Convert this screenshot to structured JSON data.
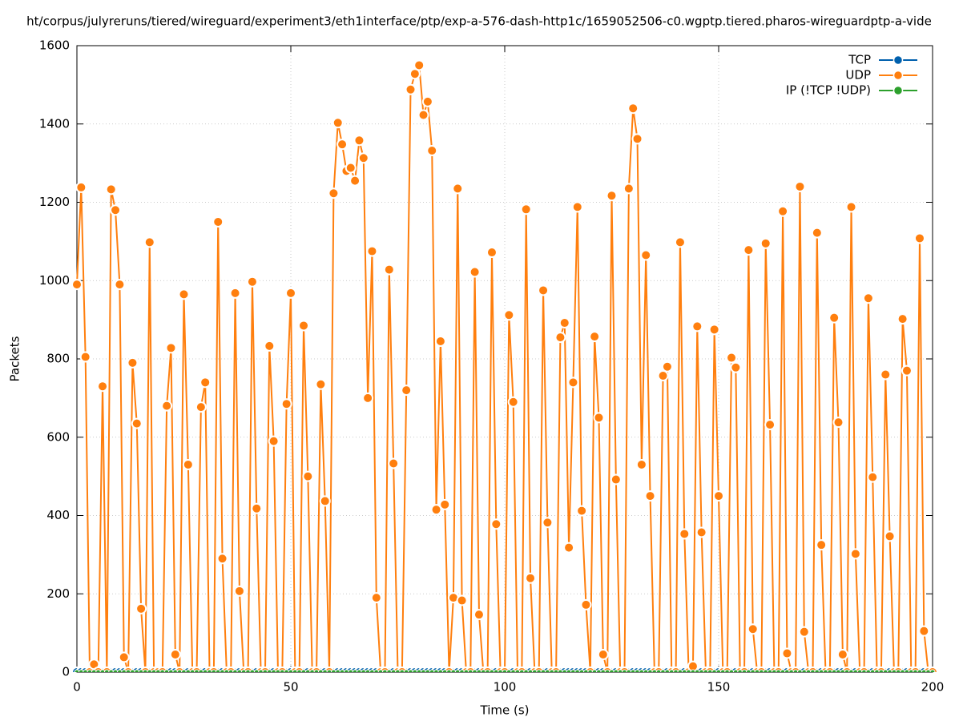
{
  "chart_data": {
    "type": "line",
    "title": "ht/corpus/julyreruns/tiered/wireguard/experiment3/eth1interface/ptp/exp-a-576-dash-http1c/1659052506-c0.wgptp.tiered.pharos-wireguardptp-a-vide",
    "x_label": "Time (s)",
    "y_label": "Packets",
    "xlim": [
      0,
      200
    ],
    "xticks": [
      0,
      50,
      100,
      150,
      200
    ],
    "ylim": [
      0,
      1600
    ],
    "yticks": [
      0,
      200,
      400,
      600,
      800,
      1000,
      1200,
      1400,
      1600
    ],
    "grid": true,
    "legend": "top-right",
    "x": [
      0,
      1,
      2,
      3,
      4,
      5,
      6,
      7,
      8,
      9,
      10,
      11,
      12,
      13,
      14,
      15,
      16,
      17,
      18,
      19,
      20,
      21,
      22,
      23,
      24,
      25,
      26,
      27,
      28,
      29,
      30,
      31,
      32,
      33,
      34,
      35,
      36,
      37,
      38,
      39,
      40,
      41,
      42,
      43,
      44,
      45,
      46,
      47,
      48,
      49,
      50,
      51,
      52,
      53,
      54,
      55,
      56,
      57,
      58,
      59,
      60,
      61,
      62,
      63,
      64,
      65,
      66,
      67,
      68,
      69,
      70,
      71,
      72,
      73,
      74,
      75,
      76,
      77,
      78,
      79,
      80,
      81,
      82,
      83,
      84,
      85,
      86,
      87,
      88,
      89,
      90,
      91,
      92,
      93,
      94,
      95,
      96,
      97,
      98,
      99,
      100,
      101,
      102,
      103,
      104,
      105,
      106,
      107,
      108,
      109,
      110,
      111,
      112,
      113,
      114,
      115,
      116,
      117,
      118,
      119,
      120,
      121,
      122,
      123,
      124,
      125,
      126,
      127,
      128,
      129,
      130,
      131,
      132,
      133,
      134,
      135,
      136,
      137,
      138,
      139,
      140,
      141,
      142,
      143,
      144,
      145,
      146,
      147,
      148,
      149,
      150,
      151,
      152,
      153,
      154,
      155,
      156,
      157,
      158,
      159,
      160,
      161,
      162,
      163,
      164,
      165,
      166,
      167,
      168,
      169,
      170,
      171,
      172,
      173,
      174,
      175,
      176,
      177,
      178,
      179,
      180,
      181,
      182,
      183,
      184,
      185,
      186,
      187,
      188,
      189,
      190,
      191,
      192,
      193,
      194,
      195,
      196,
      197,
      198,
      199,
      200
    ],
    "series": [
      {
        "name": "TCP",
        "color": "#0060ad",
        "values": [
          0,
          0,
          0,
          0,
          0,
          0,
          0,
          0,
          0,
          0,
          0,
          0,
          0,
          0,
          0,
          0,
          0,
          0,
          0,
          0,
          0,
          0,
          0,
          0,
          0,
          0,
          0,
          0,
          0,
          0,
          0,
          0,
          0,
          0,
          0,
          0,
          0,
          0,
          0,
          0,
          0,
          0,
          0,
          0,
          0,
          0,
          0,
          0,
          0,
          0,
          0,
          0,
          0,
          0,
          0,
          0,
          0,
          0,
          0,
          0,
          0,
          0,
          0,
          0,
          0,
          0,
          0,
          0,
          0,
          0,
          0,
          0,
          0,
          0,
          0,
          0,
          0,
          0,
          0,
          0,
          0,
          0,
          0,
          0,
          0,
          0,
          0,
          0,
          0,
          0,
          0,
          0,
          0,
          0,
          0,
          0,
          0,
          0,
          0,
          0,
          0,
          0,
          0,
          0,
          0,
          0,
          0,
          0,
          0,
          0,
          0,
          0,
          0,
          0,
          0,
          0,
          0,
          0,
          0,
          0,
          0,
          0,
          0,
          0,
          0,
          0,
          0,
          0,
          0,
          0,
          0,
          0,
          0,
          0,
          0,
          0,
          0,
          0,
          0,
          0,
          0,
          0,
          0,
          0,
          0,
          0,
          0,
          0,
          0,
          0,
          0,
          0,
          0,
          0,
          0,
          0,
          0,
          0,
          0,
          0,
          0,
          0,
          0,
          0,
          0,
          0,
          0,
          0,
          0,
          0,
          0,
          0,
          0,
          0,
          0,
          0,
          0,
          0,
          0,
          0,
          0,
          0,
          0,
          0,
          0,
          0,
          0,
          0,
          0,
          0,
          0,
          0,
          0,
          0,
          0,
          0,
          0,
          0,
          0,
          0,
          0
        ]
      },
      {
        "name": "UDP",
        "color": "#ff7f0e",
        "values": [
          990,
          1238,
          805,
          0,
          20,
          0,
          730,
          0,
          1233,
          1180,
          990,
          38,
          0,
          790,
          635,
          162,
          0,
          1098,
          0,
          0,
          0,
          680,
          828,
          45,
          0,
          965,
          530,
          0,
          0,
          677,
          740,
          0,
          0,
          1150,
          290,
          0,
          0,
          968,
          207,
          0,
          0,
          997,
          418,
          0,
          0,
          833,
          590,
          0,
          0,
          685,
          968,
          0,
          0,
          885,
          500,
          0,
          0,
          735,
          437,
          0,
          1223,
          1403,
          1348,
          1280,
          1288,
          1255,
          1358,
          1313,
          700,
          1075,
          190,
          0,
          0,
          1028,
          533,
          0,
          0,
          720,
          1488,
          1528,
          1550,
          1423,
          1457,
          1332,
          415,
          845,
          428,
          0,
          190,
          1235,
          183,
          0,
          0,
          1022,
          147,
          0,
          0,
          1072,
          378,
          0,
          0,
          912,
          690,
          0,
          0,
          1182,
          240,
          0,
          0,
          975,
          382,
          0,
          0,
          855,
          892,
          318,
          740,
          1188,
          412,
          172,
          0,
          857,
          650,
          45,
          0,
          1217,
          492,
          0,
          0,
          1235,
          1440,
          1362,
          530,
          1065,
          450,
          0,
          0,
          757,
          780,
          0,
          0,
          1098,
          353,
          0,
          15,
          883,
          357,
          0,
          0,
          875,
          450,
          0,
          0,
          803,
          778,
          0,
          0,
          1078,
          110,
          0,
          0,
          1095,
          632,
          0,
          0,
          1177,
          48,
          0,
          0,
          1240,
          103,
          0,
          0,
          1122,
          325,
          0,
          0,
          905,
          638,
          45,
          0,
          1188,
          302,
          0,
          0,
          955,
          498,
          0,
          0,
          760,
          347,
          0,
          0,
          902,
          770,
          0,
          0,
          1108,
          105,
          0,
          0
        ]
      },
      {
        "name": "IP (!TCP  !UDP)",
        "color": "#2ca02c",
        "values": [
          0,
          0,
          0,
          0,
          0,
          0,
          0,
          0,
          0,
          0,
          0,
          0,
          0,
          0,
          0,
          0,
          0,
          0,
          0,
          0,
          0,
          0,
          0,
          0,
          0,
          0,
          0,
          0,
          0,
          0,
          0,
          0,
          0,
          0,
          0,
          0,
          0,
          0,
          0,
          0,
          0,
          0,
          0,
          0,
          0,
          0,
          0,
          0,
          0,
          0,
          0,
          0,
          0,
          0,
          0,
          0,
          0,
          0,
          0,
          0,
          0,
          0,
          0,
          0,
          0,
          0,
          0,
          0,
          0,
          0,
          0,
          0,
          0,
          0,
          0,
          0,
          0,
          0,
          0,
          0,
          0,
          0,
          0,
          0,
          0,
          0,
          0,
          0,
          0,
          0,
          0,
          0,
          0,
          0,
          0,
          0,
          0,
          0,
          0,
          0,
          0,
          0,
          0,
          0,
          0,
          0,
          0,
          0,
          0,
          0,
          0,
          0,
          0,
          0,
          0,
          0,
          0,
          0,
          0,
          0,
          0,
          0,
          0,
          0,
          0,
          0,
          0,
          0,
          0,
          0,
          0,
          0,
          0,
          0,
          0,
          0,
          0,
          0,
          0,
          0,
          0,
          0,
          0,
          0,
          0,
          0,
          0,
          0,
          0,
          0,
          0,
          0,
          0,
          0,
          0,
          0,
          0,
          0,
          0,
          0,
          0,
          0,
          0,
          0,
          0,
          0,
          0,
          0,
          0,
          0,
          0,
          0,
          0,
          0,
          0,
          0,
          0,
          0,
          0,
          0,
          0,
          0,
          0,
          0,
          0,
          0,
          0,
          0,
          0,
          0,
          0,
          0,
          0,
          0,
          0,
          0,
          0,
          0,
          0,
          0,
          0
        ]
      }
    ]
  }
}
